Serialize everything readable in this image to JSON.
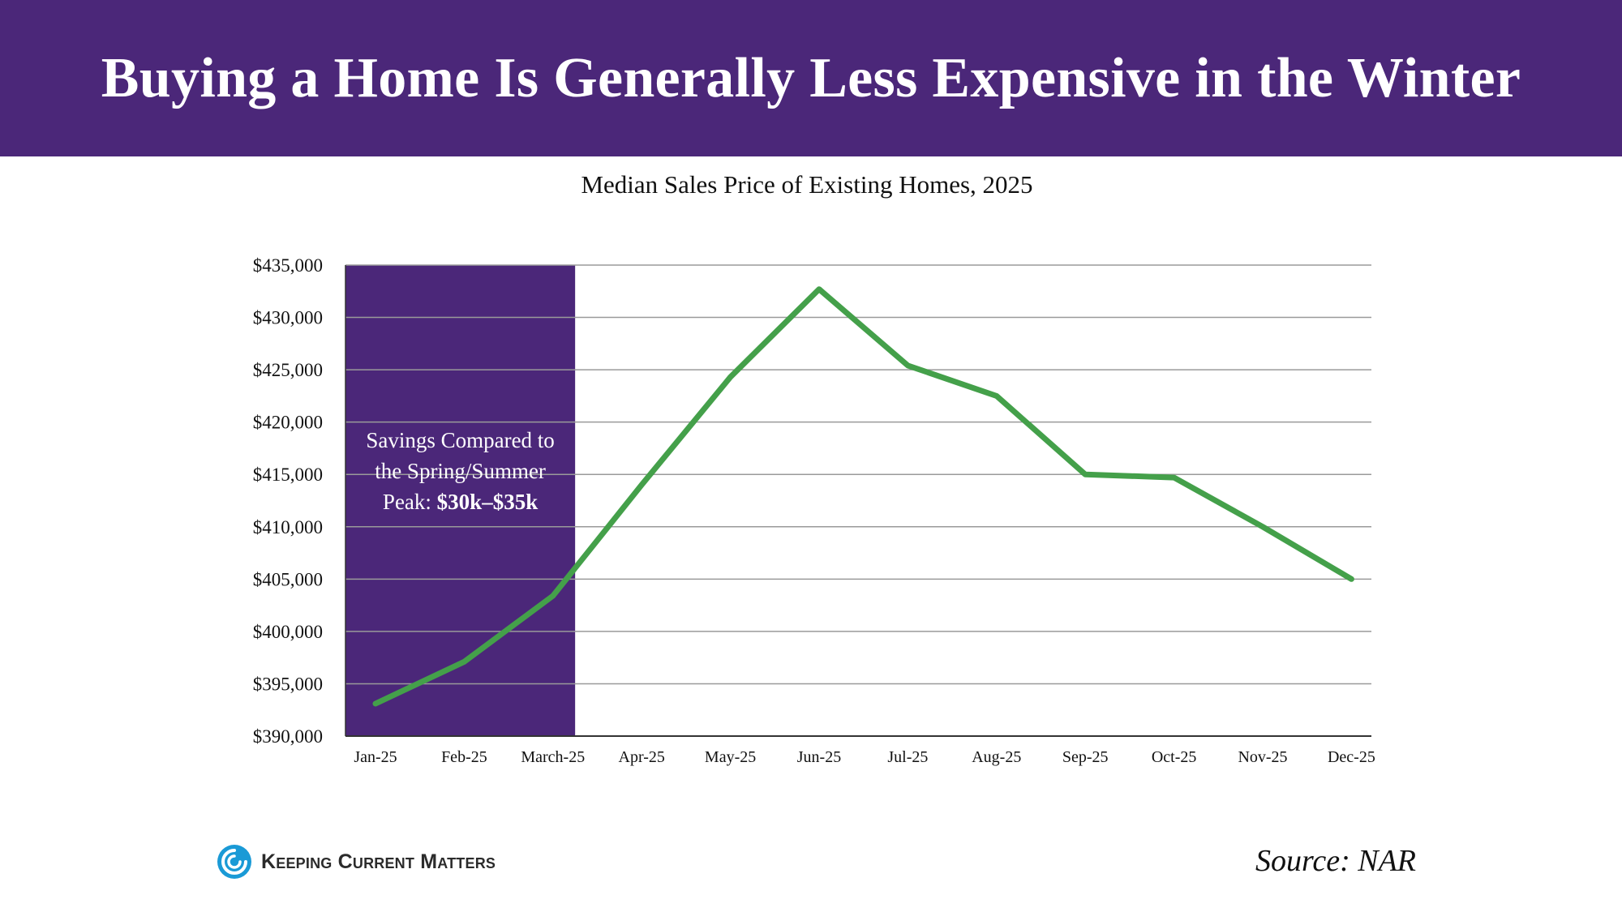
{
  "header": {
    "title": "Buying a Home Is Generally Less Expensive in the Winter"
  },
  "chart_data": {
    "type": "line",
    "title": "Median Sales Price of Existing Homes, 2025",
    "xlabel": "",
    "ylabel": "",
    "categories": [
      "Jan-25",
      "Feb-25",
      "March-25",
      "Apr-25",
      "May-25",
      "Jun-25",
      "Jul-25",
      "Aug-25",
      "Sep-25",
      "Oct-25",
      "Nov-25",
      "Dec-25"
    ],
    "y_ticks": [
      "$390,000",
      "$395,000",
      "$400,000",
      "$405,000",
      "$410,000",
      "$415,000",
      "$420,000",
      "$425,000",
      "$430,000",
      "$435,000"
    ],
    "ylim": [
      390000,
      435000
    ],
    "grid": true,
    "series": [
      {
        "color": "#44a04a",
        "values": [
          393100,
          397100,
          403400,
          414000,
          424300,
          432700,
          425400,
          422500,
          415000,
          414700,
          410000,
          405000
        ]
      }
    ],
    "highlight": {
      "from": "Jan-25",
      "to": "March-25",
      "color": "#4b2779",
      "label_lines": [
        "Savings Compared to",
        "the Spring/Summer"
      ],
      "label_prefix": "Peak: ",
      "label_bold": "$30k–$35k"
    }
  },
  "footer": {
    "logo_text": "Keeping Current Matters",
    "logo_icon": "swirl-icon",
    "source": "Source: NAR",
    "brand_color": "#1a9ad6"
  }
}
